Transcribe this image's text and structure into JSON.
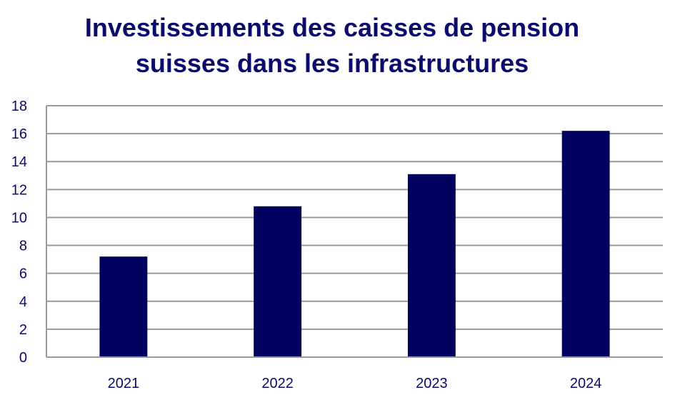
{
  "chart_data": {
    "type": "bar",
    "title_lines": [
      "Investissements des caisses de pension",
      "suisses dans les infrastructures"
    ],
    "categories": [
      "2021",
      "2022",
      "2023",
      "2024"
    ],
    "values": [
      7.2,
      10.8,
      13.1,
      16.2
    ],
    "ylim": [
      0,
      18
    ],
    "yticks": [
      0,
      2,
      4,
      6,
      8,
      10,
      12,
      14,
      16,
      18
    ],
    "grid": true,
    "legend": "none",
    "bar_color": "#00005e",
    "grid_color": "#9a9a9a",
    "text_color": "#0b0b6b"
  }
}
